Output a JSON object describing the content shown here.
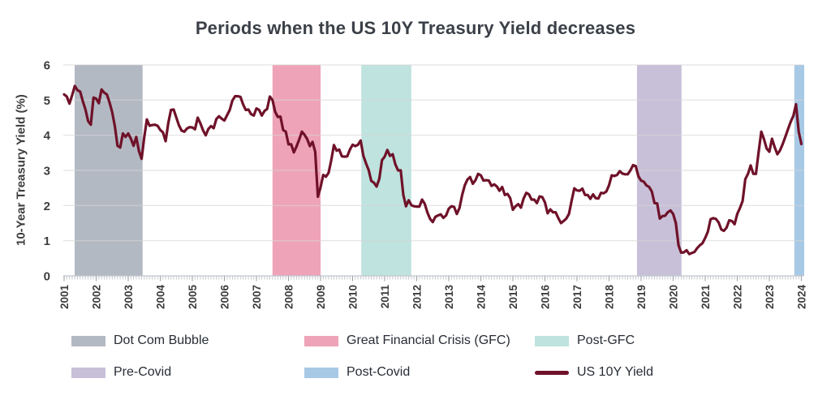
{
  "chart_data": {
    "type": "line",
    "title": "Periods when the US 10Y Treasury Yield decreases",
    "xlabel": "",
    "ylabel": "10-Year Treasury Yield (%)",
    "ylim": [
      0,
      6
    ],
    "y_ticks": [
      0,
      1,
      2,
      3,
      4,
      5,
      6
    ],
    "x_ticks": [
      2001,
      2002,
      2003,
      2004,
      2005,
      2006,
      2007,
      2008,
      2009,
      2010,
      2011,
      2012,
      2013,
      2014,
      2015,
      2016,
      2017,
      2018,
      2019,
      2020,
      2021,
      2022,
      2023,
      2024
    ],
    "grid": "horizontal",
    "legend_position": "bottom",
    "bands": [
      {
        "label": "Dot Com Bubble",
        "color": "#b3b9c3",
        "start": 2001.33,
        "end": 2003.45
      },
      {
        "label": "Great Financial Crisis (GFC)",
        "color": "#efa3b8",
        "start": 2007.5,
        "end": 2009.0
      },
      {
        "label": "Post-GFC",
        "color": "#bfe3df",
        "start": 2010.27,
        "end": 2011.83
      },
      {
        "label": "Pre-Covid",
        "color": "#c8c0d8",
        "start": 2018.87,
        "end": 2020.26
      },
      {
        "label": "Post-Covid",
        "color": "#a7c9e6",
        "start": 2023.78,
        "end": 2024.1
      }
    ],
    "series": [
      {
        "name": "US 10Y Yield",
        "color": "#6f1229",
        "interval": "monthly",
        "start_year": 2001,
        "values_by_year": {
          "2001": [
            5.16,
            5.1,
            4.9,
            5.14,
            5.4,
            5.28,
            5.24,
            4.97,
            4.73,
            4.4,
            4.3,
            5.07
          ],
          "2002": [
            5.04,
            4.91,
            5.3,
            5.21,
            5.16,
            4.93,
            4.65,
            4.26,
            3.7,
            3.65,
            4.05,
            3.95
          ],
          "2003": [
            4.05,
            3.9,
            3.7,
            3.95,
            3.55,
            3.33,
            3.95,
            4.45,
            4.27,
            4.29,
            4.3,
            4.27
          ],
          "2004": [
            4.15,
            4.08,
            3.83,
            4.35,
            4.72,
            4.73,
            4.5,
            4.28,
            4.13,
            4.1,
            4.19,
            4.23
          ],
          "2005": [
            4.22,
            4.17,
            4.5,
            4.34,
            4.14,
            4.0,
            4.18,
            4.26,
            4.2,
            4.46,
            4.54,
            4.47
          ],
          "2006": [
            4.42,
            4.57,
            4.72,
            4.99,
            5.11,
            5.11,
            5.09,
            4.88,
            4.72,
            4.73,
            4.6,
            4.56
          ],
          "2007": [
            4.76,
            4.72,
            4.56,
            4.69,
            4.75,
            5.1,
            5.0,
            4.67,
            4.52,
            4.53,
            4.15,
            4.1
          ],
          "2008": [
            3.74,
            3.74,
            3.51,
            3.68,
            3.88,
            4.1,
            4.01,
            3.89,
            3.69,
            3.81,
            3.53,
            2.25
          ],
          "2009": [
            2.52,
            2.87,
            2.82,
            2.93,
            3.29,
            3.72,
            3.56,
            3.59,
            3.4,
            3.39,
            3.4,
            3.59
          ],
          "2010": [
            3.73,
            3.69,
            3.73,
            3.85,
            3.42,
            3.2,
            3.01,
            2.7,
            2.65,
            2.54,
            2.76,
            3.29
          ],
          "2011": [
            3.39,
            3.58,
            3.41,
            3.46,
            3.17,
            3.0,
            3.0,
            2.3,
            1.98,
            2.15,
            2.01,
            1.98
          ],
          "2012": [
            1.97,
            1.97,
            2.17,
            2.05,
            1.8,
            1.62,
            1.53,
            1.68,
            1.72,
            1.75,
            1.65,
            1.72
          ],
          "2013": [
            1.91,
            1.98,
            1.96,
            1.76,
            1.93,
            2.3,
            2.58,
            2.74,
            2.81,
            2.62,
            2.72,
            2.9
          ],
          "2014": [
            2.86,
            2.71,
            2.72,
            2.71,
            2.56,
            2.6,
            2.54,
            2.42,
            2.53,
            2.3,
            2.33,
            2.21
          ],
          "2015": [
            1.88,
            1.98,
            2.04,
            1.94,
            2.2,
            2.36,
            2.32,
            2.17,
            2.17,
            2.07,
            2.26,
            2.24
          ],
          "2016": [
            2.09,
            1.78,
            1.89,
            1.81,
            1.81,
            1.64,
            1.5,
            1.56,
            1.63,
            1.76,
            2.14,
            2.49
          ],
          "2017": [
            2.43,
            2.42,
            2.48,
            2.3,
            2.3,
            2.19,
            2.32,
            2.21,
            2.2,
            2.36,
            2.35,
            2.4
          ],
          "2018": [
            2.58,
            2.86,
            2.84,
            2.87,
            2.98,
            2.91,
            2.89,
            2.89,
            3.0,
            3.15,
            3.12,
            2.83
          ],
          "2019": [
            2.71,
            2.68,
            2.57,
            2.53,
            2.4,
            2.07,
            2.06,
            1.63,
            1.7,
            1.71,
            1.81,
            1.86
          ],
          "2020": [
            1.76,
            1.5,
            0.87,
            0.66,
            0.67,
            0.73,
            0.62,
            0.65,
            0.68,
            0.79,
            0.87,
            0.93
          ],
          "2021": [
            1.08,
            1.26,
            1.61,
            1.64,
            1.62,
            1.52,
            1.32,
            1.28,
            1.37,
            1.58,
            1.56,
            1.47
          ],
          "2022": [
            1.76,
            1.93,
            2.13,
            2.75,
            2.9,
            3.14,
            2.9,
            2.9,
            3.52,
            4.1,
            3.89,
            3.62
          ],
          "2023": [
            3.53,
            3.9,
            3.66,
            3.46,
            3.57,
            3.75,
            3.96,
            4.17,
            4.38,
            4.55,
            4.88,
            4.1
          ],
          "2024": [
            3.75
          ]
        }
      }
    ]
  },
  "legend": [
    {
      "label": "Dot Com Bubble",
      "color": "#b3b9c3",
      "type": "band"
    },
    {
      "label": "Great Financial Crisis (GFC)",
      "color": "#efa3b8",
      "type": "band"
    },
    {
      "label": "Post-GFC",
      "color": "#bfe3df",
      "type": "band"
    },
    {
      "label": "Pre-Covid",
      "color": "#c8c0d8",
      "type": "band"
    },
    {
      "label": "Post-Covid",
      "color": "#a7c9e6",
      "type": "band"
    },
    {
      "label": "US 10Y Yield",
      "color": "#6f1229",
      "type": "line"
    }
  ]
}
